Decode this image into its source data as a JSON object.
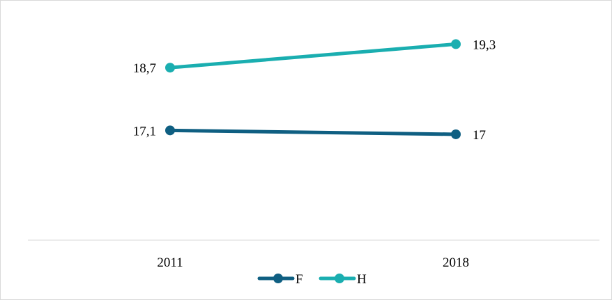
{
  "chart_data": {
    "type": "line",
    "categories": [
      "2011",
      "2018"
    ],
    "series": [
      {
        "name": "F",
        "values": [
          17.1,
          17
        ],
        "labels": [
          "17,1",
          "17"
        ],
        "color": "#0f5f82"
      },
      {
        "name": "H",
        "values": [
          18.7,
          19.3
        ],
        "labels": [
          "18,7",
          "19,3"
        ],
        "color": "#1aaeb0"
      }
    ],
    "title": "",
    "xlabel": "",
    "ylabel": "",
    "ylim": [
      14.3,
      20.0
    ],
    "grid": false,
    "y_axis_visible": false,
    "legend": {
      "position": "bottom",
      "entries": [
        "F",
        "H"
      ]
    }
  }
}
